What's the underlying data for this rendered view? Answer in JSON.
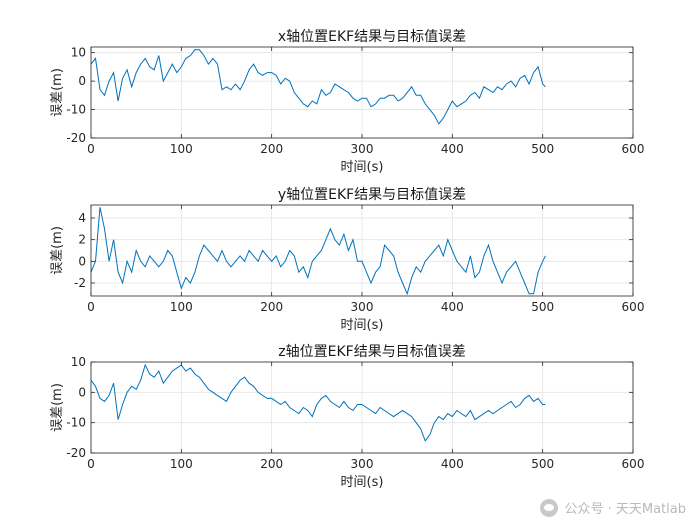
{
  "chart_data": [
    {
      "type": "line",
      "title": "x轴位置EKF结果与目标值误差",
      "xlabel": "时间(s)",
      "ylabel": "误差(m)",
      "xlim": [
        0,
        600
      ],
      "ylim": [
        -20,
        12
      ],
      "xticks": [
        0,
        100,
        200,
        300,
        400,
        500,
        600
      ],
      "yticks": [
        -20,
        -10,
        0,
        10
      ],
      "color": "#0072BD",
      "grid": true,
      "series": [
        {
          "x": [
            0,
            5,
            10,
            15,
            20,
            25,
            30,
            35,
            40,
            45,
            50,
            55,
            60,
            65,
            70,
            75,
            80,
            85,
            90,
            95,
            100,
            105,
            110,
            115,
            120,
            125,
            130,
            135,
            140,
            145,
            150,
            155,
            160,
            165,
            170,
            175,
            180,
            185,
            190,
            195,
            200,
            205,
            210,
            215,
            220,
            225,
            230,
            235,
            240,
            245,
            250,
            255,
            260,
            265,
            270,
            275,
            280,
            285,
            290,
            295,
            300,
            305,
            310,
            315,
            320,
            325,
            330,
            335,
            340,
            345,
            350,
            355,
            360,
            365,
            370,
            375,
            380,
            385,
            390,
            395,
            400,
            405,
            410,
            415,
            420,
            425,
            430,
            435,
            440,
            445,
            450,
            455,
            460,
            465,
            470,
            475,
            480,
            485,
            490,
            495,
            500,
            503
          ],
          "y": [
            6,
            8,
            -3,
            -5,
            0,
            3,
            -7,
            1,
            4,
            -2,
            3,
            6,
            8,
            5,
            4,
            9,
            0,
            3,
            6,
            3,
            5,
            8,
            9,
            11,
            11,
            9,
            6,
            8,
            6,
            -3,
            -2,
            -3,
            -1,
            -3,
            0,
            4,
            6,
            3,
            2,
            3,
            3,
            2,
            -1,
            1,
            0,
            -4,
            -6,
            -8,
            -9,
            -7,
            -8,
            -3,
            -5,
            -4,
            -1,
            -2,
            -3,
            -4,
            -6,
            -7,
            -6,
            -6,
            -9,
            -8,
            -6,
            -6,
            -5,
            -5,
            -7,
            -6,
            -4,
            -2,
            -5,
            -5,
            -8,
            -10,
            -12,
            -15,
            -13,
            -10,
            -7,
            -9,
            -8,
            -7,
            -5,
            -4,
            -6,
            -2,
            -3,
            -4,
            -2,
            -3,
            -1,
            0,
            -2,
            1,
            2,
            -1,
            3,
            5,
            -1,
            -2
          ]
        }
      ]
    },
    {
      "type": "line",
      "title": "y轴位置EKF结果与目标值误差",
      "xlabel": "时间(s)",
      "ylabel": "误差(m)",
      "xlim": [
        0,
        600
      ],
      "ylim": [
        -3.2,
        5.2
      ],
      "xticks": [
        0,
        100,
        200,
        300,
        400,
        500,
        600
      ],
      "yticks": [
        -2,
        0,
        2,
        4
      ],
      "color": "#0072BD",
      "grid": true,
      "series": [
        {
          "x": [
            0,
            5,
            10,
            15,
            20,
            25,
            30,
            35,
            40,
            45,
            50,
            55,
            60,
            65,
            70,
            75,
            80,
            85,
            90,
            95,
            100,
            105,
            110,
            115,
            120,
            125,
            130,
            135,
            140,
            145,
            150,
            155,
            160,
            165,
            170,
            175,
            180,
            185,
            190,
            195,
            200,
            205,
            210,
            215,
            220,
            225,
            230,
            235,
            240,
            245,
            250,
            255,
            260,
            265,
            270,
            275,
            280,
            285,
            290,
            295,
            300,
            305,
            310,
            315,
            320,
            325,
            330,
            335,
            340,
            345,
            350,
            355,
            360,
            365,
            370,
            375,
            380,
            385,
            390,
            395,
            400,
            405,
            410,
            415,
            420,
            425,
            430,
            435,
            440,
            445,
            450,
            455,
            460,
            465,
            470,
            475,
            480,
            485,
            490,
            495,
            500,
            503
          ],
          "y": [
            -1,
            0,
            5,
            3,
            0,
            2,
            -1,
            -2,
            0,
            -1,
            1,
            0,
            -0.5,
            0.5,
            0,
            -0.5,
            0,
            1,
            0.5,
            -1,
            -2.5,
            -1.5,
            -2,
            -1,
            0.5,
            1.5,
            1,
            0.5,
            0,
            1,
            0,
            -0.5,
            0,
            0.5,
            0,
            1,
            0.5,
            0,
            1,
            0.5,
            0,
            0.5,
            -0.5,
            0,
            1,
            0.5,
            -1,
            -0.5,
            -1.5,
            0,
            0.5,
            1,
            2,
            3,
            2,
            1.5,
            2.5,
            1,
            2,
            0,
            0,
            -1,
            -2,
            -1,
            -0.5,
            1.5,
            1,
            0.5,
            -1,
            -2,
            -3,
            -1.5,
            -0.5,
            -1,
            0,
            0.5,
            1,
            1.5,
            0.5,
            2,
            1,
            0,
            -0.5,
            -1,
            0.5,
            -1.5,
            -1,
            0.5,
            1.5,
            0,
            -1,
            -2,
            -1,
            -0.5,
            0,
            -1,
            -2,
            -3,
            -3,
            -1,
            0,
            0.5
          ]
        }
      ]
    },
    {
      "type": "line",
      "title": "z轴位置EKF结果与目标值误差",
      "xlabel": "时间(s)",
      "ylabel": "误差(m)",
      "xlim": [
        0,
        600
      ],
      "ylim": [
        -20,
        10
      ],
      "xticks": [
        0,
        100,
        200,
        300,
        400,
        500,
        600
      ],
      "yticks": [
        -20,
        -10,
        0,
        10
      ],
      "color": "#0072BD",
      "grid": true,
      "series": [
        {
          "x": [
            0,
            5,
            10,
            15,
            20,
            25,
            30,
            35,
            40,
            45,
            50,
            55,
            60,
            65,
            70,
            75,
            80,
            85,
            90,
            95,
            100,
            105,
            110,
            115,
            120,
            125,
            130,
            135,
            140,
            145,
            150,
            155,
            160,
            165,
            170,
            175,
            180,
            185,
            190,
            195,
            200,
            205,
            210,
            215,
            220,
            225,
            230,
            235,
            240,
            245,
            250,
            255,
            260,
            265,
            270,
            275,
            280,
            285,
            290,
            295,
            300,
            305,
            310,
            315,
            320,
            325,
            330,
            335,
            340,
            345,
            350,
            355,
            360,
            365,
            370,
            375,
            380,
            385,
            390,
            395,
            400,
            405,
            410,
            415,
            420,
            425,
            430,
            435,
            440,
            445,
            450,
            455,
            460,
            465,
            470,
            475,
            480,
            485,
            490,
            495,
            500,
            503
          ],
          "y": [
            4,
            2,
            -2,
            -3,
            -1,
            3,
            -9,
            -4,
            0,
            2,
            1,
            4,
            9,
            6,
            5,
            7,
            3,
            5,
            7,
            8,
            9,
            7,
            8,
            6,
            5,
            3,
            1,
            0,
            -1,
            -2,
            -3,
            0,
            2,
            4,
            5,
            3,
            2,
            0,
            -1,
            -2,
            -2,
            -3,
            -4,
            -3,
            -5,
            -6,
            -7,
            -5,
            -6,
            -8,
            -4,
            -2,
            -1,
            -3,
            -4,
            -5,
            -3,
            -5,
            -6,
            -4,
            -4,
            -5,
            -6,
            -7,
            -5,
            -6,
            -7,
            -8,
            -7,
            -6,
            -7,
            -8,
            -10,
            -12,
            -16,
            -14,
            -10,
            -8,
            -9,
            -7,
            -8,
            -6,
            -7,
            -8,
            -6,
            -9,
            -8,
            -7,
            -6,
            -7,
            -6,
            -5,
            -4,
            -3,
            -5,
            -4,
            -2,
            -1,
            -3,
            -2,
            -4,
            -4
          ]
        }
      ]
    }
  ],
  "watermark": {
    "text": "公众号 · 天天Matlab",
    "icon": "wechat-icon"
  }
}
